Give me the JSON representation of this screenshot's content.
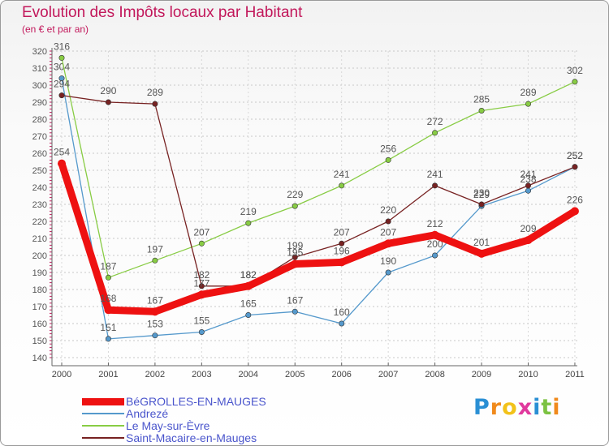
{
  "chart_data": {
    "type": "line",
    "title": "Evolution des Impôts locaux par Habitant",
    "subtitle": "(en € et par an)",
    "xlabel": "",
    "ylabel": "",
    "x": [
      "2000",
      "2001",
      "2002",
      "2003",
      "2004",
      "2005",
      "2006",
      "2007",
      "2008",
      "2009",
      "2010",
      "2011"
    ],
    "ylim": [
      140,
      320
    ],
    "yticks": [
      140,
      150,
      160,
      170,
      180,
      190,
      200,
      210,
      220,
      230,
      240,
      250,
      260,
      270,
      280,
      290,
      300,
      310,
      320
    ],
    "grid": "horizontal dashed",
    "legend_position": "bottom-left",
    "series": [
      {
        "name": "BéGROLLES-EN-MAUGES",
        "color": "#ee1111",
        "values": [
          254,
          168,
          167,
          177,
          182,
          195,
          196,
          207,
          212,
          201,
          209,
          226
        ]
      },
      {
        "name": "Andrezé",
        "color": "#5599cc",
        "values": [
          304,
          151,
          153,
          155,
          165,
          167,
          160,
          190,
          200,
          229,
          238,
          252
        ]
      },
      {
        "name": "Le May-sur-Èvre",
        "color": "#88cc44",
        "values": [
          316,
          187,
          197,
          207,
          219,
          229,
          241,
          256,
          272,
          285,
          289,
          302
        ]
      },
      {
        "name": "Saint-Macaire-en-Mauges",
        "color": "#772222",
        "values": [
          294,
          290,
          289,
          182,
          182,
          199,
          207,
          220,
          241,
          230,
          241,
          252
        ]
      }
    ]
  },
  "brand": {
    "letters": [
      "P",
      "r",
      "o",
      "x",
      "i",
      "t",
      "i"
    ],
    "colors": [
      "#2a8fd4",
      "#f08a1c",
      "#f2c21a",
      "#e0399d",
      "#2a8fd4",
      "#7cc242",
      "#f08a1c"
    ]
  }
}
